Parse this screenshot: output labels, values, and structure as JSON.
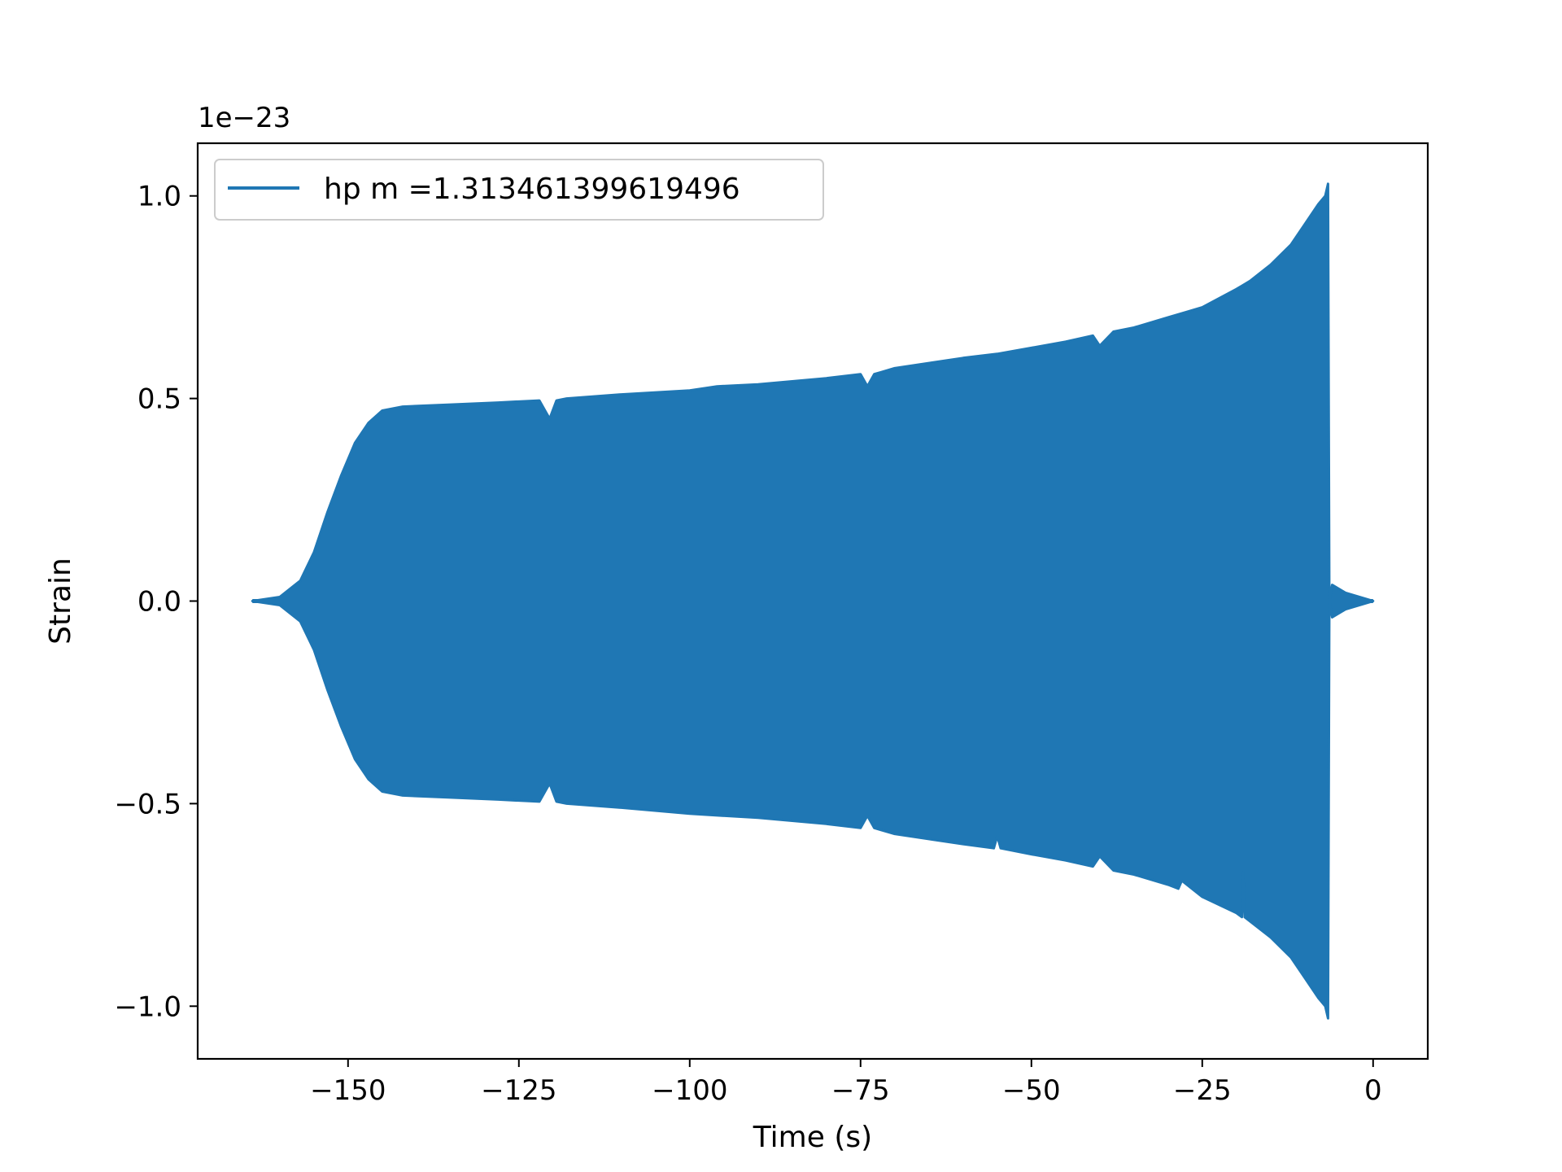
{
  "chart_data": {
    "type": "line",
    "title": "",
    "xlabel": "Time (s)",
    "ylabel": "Strain",
    "y_offset_label": "1e−23",
    "xlim": [
      -172,
      8
    ],
    "ylim": [
      -1.13,
      1.13
    ],
    "x_ticks": [
      {
        "value": -150,
        "label": "−150"
      },
      {
        "value": -125,
        "label": "−125"
      },
      {
        "value": -100,
        "label": "−100"
      },
      {
        "value": -75,
        "label": "−75"
      },
      {
        "value": -50,
        "label": "−50"
      },
      {
        "value": -25,
        "label": "−25"
      },
      {
        "value": 0,
        "label": "0"
      }
    ],
    "y_ticks": [
      {
        "value": -1.0,
        "label": "−1.0"
      },
      {
        "value": -0.5,
        "label": "−0.5"
      },
      {
        "value": 0.0,
        "label": "0.0"
      },
      {
        "value": 0.5,
        "label": "0.5"
      },
      {
        "value": 1.0,
        "label": "1.0"
      }
    ],
    "grid": false,
    "legend_position": "upper-left",
    "series": [
      {
        "name": "hp m =1.313461399619496",
        "color": "#1f77b4",
        "envelope_upper": {
          "x": [
            -164,
            -160,
            -157,
            -155,
            -153,
            -151,
            -149,
            -147,
            -145,
            -142,
            -135,
            -128,
            -122,
            -120.5,
            -119.5,
            -118,
            -110,
            -100,
            -96,
            -90,
            -80,
            -75,
            -74,
            -73,
            -72,
            -70,
            -60,
            -55,
            -50,
            -45,
            -41,
            -40,
            -38,
            -35,
            -30,
            -25,
            -20,
            -18,
            -15,
            -12,
            -10,
            -8,
            -7,
            -6.6,
            -6.4,
            -6,
            -4,
            -2,
            0
          ],
          "y": [
            0.0,
            0.01,
            0.05,
            0.12,
            0.22,
            0.31,
            0.39,
            0.44,
            0.47,
            0.48,
            0.485,
            0.49,
            0.495,
            0.45,
            0.495,
            0.5,
            0.51,
            0.52,
            0.53,
            0.535,
            0.55,
            0.56,
            0.53,
            0.56,
            0.565,
            0.575,
            0.6,
            0.61,
            0.625,
            0.64,
            0.655,
            0.63,
            0.665,
            0.675,
            0.7,
            0.725,
            0.77,
            0.79,
            0.83,
            0.88,
            0.93,
            0.98,
            1.0,
            1.03,
            0.0,
            0.04,
            0.02,
            0.01,
            0.0
          ]
        },
        "envelope_lower": {
          "x": [
            -164,
            -160,
            -157,
            -155,
            -153,
            -151,
            -149,
            -147,
            -145,
            -142,
            -135,
            -128,
            -122,
            -120.5,
            -119.5,
            -118,
            -110,
            -100,
            -90,
            -80,
            -75,
            -74,
            -73,
            -72,
            -70,
            -60,
            -55.5,
            -55,
            -54.5,
            -50,
            -45,
            -41,
            -40,
            -38,
            -35,
            -30,
            -28.5,
            -28,
            -25,
            -20,
            -19.2,
            -19,
            -18.8,
            -15,
            -12,
            -10,
            -8,
            -7,
            -6.6,
            -6.4,
            -6,
            -4,
            -2,
            0
          ],
          "y": [
            0.0,
            -0.01,
            -0.05,
            -0.12,
            -0.22,
            -0.31,
            -0.39,
            -0.44,
            -0.47,
            -0.48,
            -0.485,
            -0.49,
            -0.495,
            -0.45,
            -0.495,
            -0.5,
            -0.51,
            -0.525,
            -0.535,
            -0.55,
            -0.56,
            -0.53,
            -0.56,
            -0.565,
            -0.575,
            -0.6,
            -0.61,
            -0.58,
            -0.61,
            -0.625,
            -0.64,
            -0.655,
            -0.63,
            -0.665,
            -0.675,
            -0.7,
            -0.71,
            -0.69,
            -0.73,
            -0.77,
            -0.78,
            -0.67,
            -0.78,
            -0.83,
            -0.88,
            -0.93,
            -0.98,
            -1.0,
            -1.03,
            0.0,
            -0.04,
            -0.02,
            -0.01,
            0.0
          ]
        }
      }
    ]
  }
}
